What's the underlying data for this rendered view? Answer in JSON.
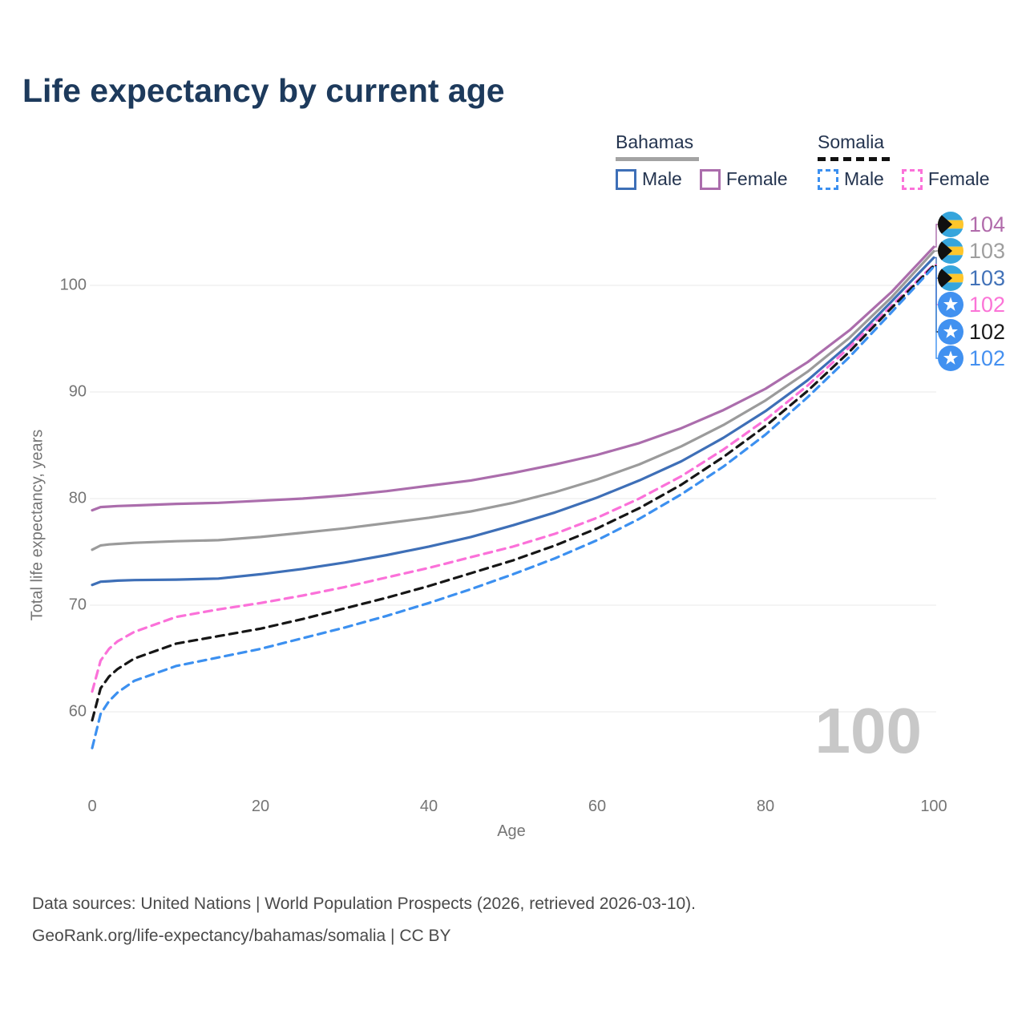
{
  "title": "Life expectancy by current age",
  "legend": {
    "groups": [
      {
        "title": "Bahamas",
        "line_style": "solid",
        "underline_color": "#a3a3a3",
        "items": [
          {
            "label": "Male",
            "color": "#3e6fb7"
          },
          {
            "label": "Female",
            "color": "#ab6dac"
          }
        ]
      },
      {
        "title": "Somalia",
        "line_style": "dashed",
        "underline_color": "#111111",
        "items": [
          {
            "label": "Male",
            "color": "#3c90f0"
          },
          {
            "label": "Female",
            "color": "#fb71d9"
          }
        ]
      }
    ]
  },
  "watermark": "100",
  "footer": {
    "line1": "Data sources: United Nations | World Population Prospects (2026, retrieved 2026-03-10).",
    "line2": "GeoRank.org/life-expectancy/bahamas/somalia | CC BY"
  },
  "chart_data": {
    "type": "line",
    "title": "Life expectancy by current age",
    "xlabel": "Age",
    "ylabel": "Total life expectancy, years",
    "xlim": [
      0,
      100
    ],
    "ylim": [
      56,
      105
    ],
    "xticks": [
      0,
      20,
      40,
      60,
      80,
      100
    ],
    "yticks": [
      60,
      70,
      80,
      90,
      100
    ],
    "grid": "horizontal",
    "legend_position": "top-right",
    "x": [
      0,
      1,
      2,
      3,
      5,
      10,
      15,
      20,
      25,
      30,
      35,
      40,
      45,
      50,
      55,
      60,
      65,
      70,
      75,
      80,
      85,
      90,
      95,
      100
    ],
    "series": [
      {
        "name": "Bahamas Female",
        "country": "Bahamas",
        "sex": "Female",
        "color": "#ab6dac",
        "dash": false,
        "end_label": "104",
        "flag": "bahamas",
        "values": [
          78.9,
          79.2,
          79.25,
          79.3,
          79.35,
          79.5,
          79.6,
          79.8,
          80.0,
          80.3,
          80.7,
          81.2,
          81.7,
          82.4,
          83.2,
          84.1,
          85.2,
          86.6,
          88.3,
          90.3,
          92.8,
          95.8,
          99.4,
          103.6
        ]
      },
      {
        "name": "Bahamas Both sexes",
        "country": "Bahamas",
        "sex": "Both",
        "color": "#9b9b9b",
        "dash": false,
        "end_label": "103",
        "flag": "bahamas",
        "values": [
          75.2,
          75.6,
          75.7,
          75.75,
          75.85,
          76.0,
          76.1,
          76.4,
          76.8,
          77.2,
          77.7,
          78.2,
          78.8,
          79.6,
          80.6,
          81.8,
          83.2,
          84.9,
          86.9,
          89.2,
          91.9,
          95.1,
          98.9,
          103.2
        ]
      },
      {
        "name": "Bahamas Male",
        "country": "Bahamas",
        "sex": "Male",
        "color": "#3e6fb7",
        "dash": false,
        "end_label": "103",
        "flag": "bahamas",
        "values": [
          71.9,
          72.2,
          72.25,
          72.3,
          72.35,
          72.4,
          72.5,
          72.9,
          73.4,
          74.0,
          74.7,
          75.5,
          76.4,
          77.5,
          78.7,
          80.1,
          81.7,
          83.5,
          85.7,
          88.2,
          91.1,
          94.5,
          98.5,
          102.6
        ]
      },
      {
        "name": "Somalia Female",
        "country": "Somalia",
        "sex": "Female",
        "color": "#fb71d9",
        "dash": true,
        "end_label": "102",
        "flag": "somalia",
        "values": [
          61.9,
          64.8,
          65.9,
          66.6,
          67.5,
          68.9,
          69.6,
          70.2,
          70.9,
          71.7,
          72.6,
          73.5,
          74.5,
          75.5,
          76.7,
          78.2,
          80.0,
          82.1,
          84.6,
          87.4,
          90.6,
          94.2,
          98.1,
          101.95
        ]
      },
      {
        "name": "Somalia Both sexes",
        "country": "Somalia",
        "sex": "Both",
        "color": "#161616",
        "dash": true,
        "end_label": "102",
        "flag": "somalia",
        "values": [
          59.2,
          62.2,
          63.3,
          64.0,
          65.0,
          66.4,
          67.1,
          67.8,
          68.7,
          69.7,
          70.7,
          71.8,
          73.0,
          74.2,
          75.6,
          77.2,
          79.1,
          81.3,
          83.9,
          86.8,
          90.1,
          93.8,
          97.9,
          101.85
        ]
      },
      {
        "name": "Somalia Male",
        "country": "Somalia",
        "sex": "Male",
        "color": "#3c90f0",
        "dash": true,
        "end_label": "102",
        "flag": "somalia",
        "values": [
          56.6,
          59.8,
          61.0,
          61.8,
          62.9,
          64.3,
          65.1,
          65.9,
          66.9,
          67.9,
          69.0,
          70.2,
          71.5,
          72.9,
          74.4,
          76.1,
          78.1,
          80.4,
          83.0,
          86.0,
          89.5,
          93.3,
          97.5,
          101.75
        ]
      }
    ],
    "end_label_text_colors": [
      "#b16bab",
      "#9e9e9e",
      "#4272b8",
      "#fb74d7",
      "#1a1a1a",
      "#4590f0"
    ]
  }
}
